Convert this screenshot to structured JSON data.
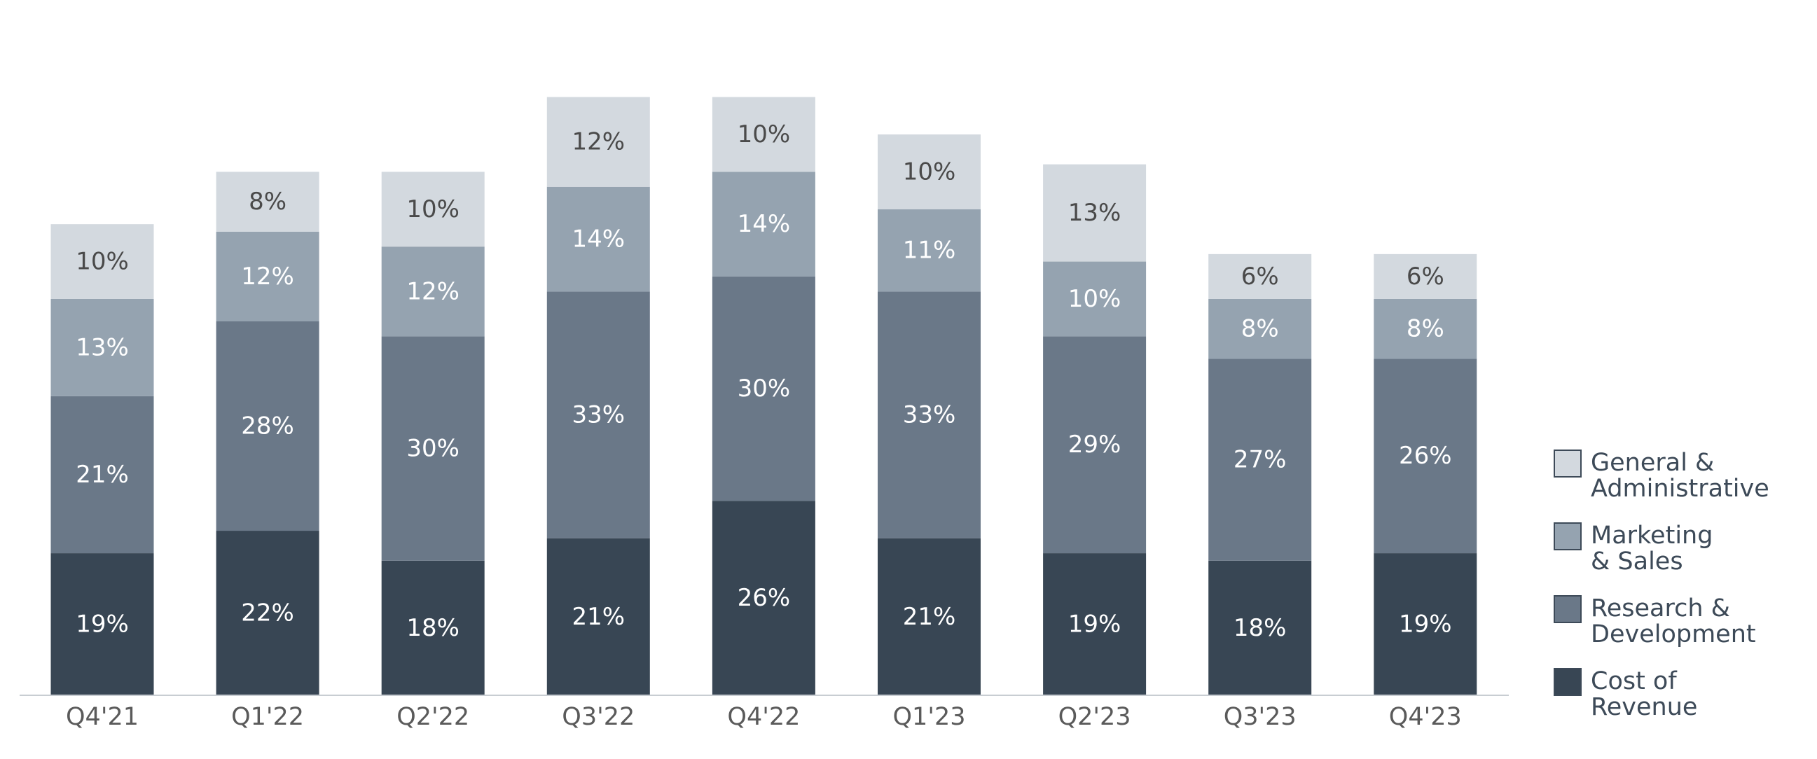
{
  "chart_data": {
    "type": "bar",
    "stacked": true,
    "categories": [
      "Q4'21",
      "Q1'22",
      "Q2'22",
      "Q3'22",
      "Q4'22",
      "Q1'23",
      "Q2'23",
      "Q3'23",
      "Q4'23"
    ],
    "series": [
      {
        "name": "Cost of Revenue",
        "color": "#384654",
        "label_color": "#ffffff",
        "values": [
          19,
          22,
          18,
          21,
          26,
          21,
          19,
          18,
          19
        ]
      },
      {
        "name": "Research & Development",
        "color": "#6a7888",
        "label_color": "#ffffff",
        "values": [
          21,
          28,
          30,
          33,
          30,
          33,
          29,
          27,
          26
        ]
      },
      {
        "name": "Marketing & Sales",
        "color": "#95a3b0",
        "label_color": "#ffffff",
        "values": [
          13,
          12,
          12,
          14,
          14,
          11,
          10,
          8,
          8
        ]
      },
      {
        "name": "General & Administrative",
        "color": "#d3d9df",
        "label_color": "#4a4a4a",
        "values": [
          10,
          8,
          10,
          12,
          10,
          10,
          13,
          6,
          6
        ]
      }
    ],
    "value_suffix": "%",
    "legend": {
      "placement": "right-bottom",
      "entries": [
        {
          "line1": "General &",
          "line2": "Administrative",
          "color": "#d3d9df"
        },
        {
          "line1": "Marketing",
          "line2": "& Sales",
          "color": "#95a3b0"
        },
        {
          "line1": "Research &",
          "line2": "Development",
          "color": "#6a7888"
        },
        {
          "line1": "Cost of",
          "line2": "Revenue",
          "color": "#384654"
        }
      ]
    },
    "ylim": [
      0,
      80
    ],
    "grid": false,
    "title": "",
    "xlabel": "",
    "ylabel": ""
  }
}
